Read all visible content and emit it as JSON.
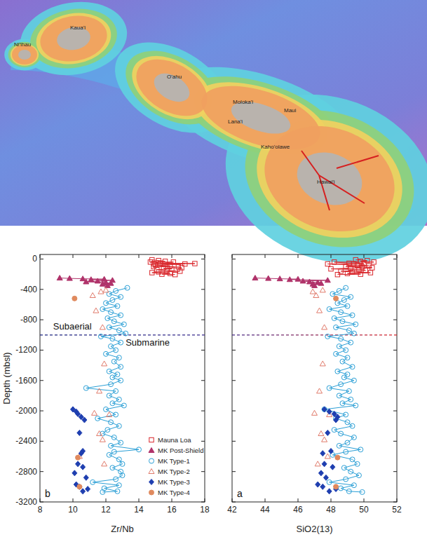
{
  "map": {
    "labels": [
      "Kaua'i",
      "Ni'ihau",
      "O'ahu",
      "Moloka'i",
      "Lana'i",
      "Maui",
      "Kaho'olawe",
      "Hawai'i"
    ]
  },
  "chart_data": [
    {
      "type": "scatter",
      "panel_label": "b",
      "x_label": "Zr/Nb",
      "y_label": "Depth (mbsl)",
      "xlim": [
        8,
        18
      ],
      "xticks": [
        8,
        10,
        12,
        14,
        16,
        18
      ],
      "ylim": [
        -3200,
        60
      ],
      "yticks": [
        0,
        -400,
        -800,
        -1200,
        -1600,
        -2000,
        -2400,
        -2800,
        -3200
      ],
      "tick_labels": true,
      "legend": "lower right",
      "reference_line": -1000,
      "annotations": [
        {
          "text": "Subaerial",
          "x": 8.8,
          "y": -930
        },
        {
          "text": "Submarine",
          "x": 13.2,
          "y": -1140
        }
      ],
      "series": [
        {
          "name": "Mauna Loa",
          "color": "#d9262b",
          "marker": "open-square",
          "line_style": "solid",
          "x": [
            14.8,
            15.2,
            15.6,
            14.7,
            16.1,
            15.3,
            17.4,
            14.9,
            16.8,
            15.0,
            15.9,
            14.9,
            16.4,
            16.6,
            15.5,
            16.0,
            15.1,
            15.7,
            16.5,
            15.2,
            14.8,
            15.9,
            15.4,
            16.2
          ],
          "values": [
            -10,
            -20,
            -30,
            -40,
            -40,
            -55,
            -60,
            -60,
            -65,
            -80,
            -90,
            -100,
            -105,
            -115,
            -120,
            -130,
            -140,
            -150,
            -160,
            -170,
            -180,
            -190,
            -200,
            -205
          ]
        },
        {
          "name": "MK Post-Shield",
          "color": "#b0336a",
          "marker": "triangle",
          "line_style": "solid",
          "x": [
            9.2,
            9.8,
            10.6,
            11.9,
            11.1,
            12.4,
            11.5,
            10.8,
            12.0,
            12.3,
            11.8,
            12.1
          ],
          "values": [
            -250,
            -255,
            -260,
            -265,
            -270,
            -280,
            -290,
            -300,
            -310,
            -320,
            -330,
            -350
          ]
        },
        {
          "name": "MK Type-1",
          "color": "#2a9fd6",
          "marker": "open-circle",
          "line_style": "solid",
          "x": [
            13.3,
            12.6,
            12.2,
            12.9,
            12.4,
            12.0,
            12.7,
            11.8,
            12.3,
            12.9,
            12.1,
            12.5,
            13.1,
            12.2,
            12.8,
            13.2,
            11.7,
            12.4,
            12.9,
            12.3,
            12.6,
            12.0,
            12.8,
            12.5,
            12.9,
            12.2,
            12.7,
            12.4,
            12.9,
            12.3,
            10.8,
            12.6,
            12.2,
            12.8,
            12.4,
            13.1,
            12.0,
            12.6,
            11.5,
            12.3,
            12.8,
            12.1,
            11.8,
            12.5,
            12.9,
            12.3,
            14.0,
            12.5,
            12.2,
            12.8,
            13.0,
            12.4,
            12.9,
            13.0,
            12.6,
            11.2,
            12.8,
            11.9,
            12.7,
            11.8
          ],
          "values": [
            -380,
            -420,
            -460,
            -500,
            -540,
            -580,
            -620,
            -660,
            -700,
            -740,
            -780,
            -820,
            -860,
            -900,
            -940,
            -980,
            -1020,
            -1050,
            -1100,
            -1150,
            -1200,
            -1250,
            -1300,
            -1350,
            -1420,
            -1480,
            -1520,
            -1560,
            -1600,
            -1650,
            -1700,
            -1740,
            -1800,
            -1850,
            -1900,
            -1930,
            -1980,
            -2050,
            -2100,
            -2150,
            -2200,
            -2250,
            -2300,
            -2350,
            -2420,
            -2460,
            -2510,
            -2540,
            -2580,
            -2640,
            -2700,
            -2750,
            -2800,
            -2850,
            -2900,
            -2940,
            -2980,
            -3020,
            -3060,
            -3070
          ]
        },
        {
          "name": "MK Type-2",
          "color": "#e07a6a",
          "marker": "open-triangle",
          "x": [
            12.0,
            11.7,
            11.2,
            11.4,
            11.8,
            11.9,
            11.6,
            11.3,
            12.2,
            11.6,
            11.8,
            10.4,
            11.9
          ],
          "values": [
            -410,
            -430,
            -480,
            -680,
            -900,
            -1380,
            -1740,
            -2030,
            -2050,
            -2300,
            -2380,
            -2600,
            -2700
          ]
        },
        {
          "name": "MK Type-3",
          "color": "#1f3fb0",
          "marker": "diamond",
          "x": [
            10.0,
            10.2,
            10.3,
            10.5,
            10.7,
            10.4,
            10.6,
            10.5,
            10.3,
            10.6,
            10.1,
            10.8,
            10.2,
            10.4,
            10.9,
            10.6
          ],
          "values": [
            -1980,
            -2010,
            -2040,
            -2080,
            -2120,
            -2290,
            -2530,
            -2560,
            -2700,
            -2740,
            -2820,
            -2880,
            -2970,
            -3000,
            -3030,
            -3060
          ]
        },
        {
          "name": "MK Type-4",
          "color": "#e08a5e",
          "marker": "circle",
          "x": [
            10.1,
            10.3,
            10.4
          ],
          "values": [
            -520,
            -2615,
            -3000
          ]
        }
      ]
    },
    {
      "type": "scatter",
      "panel_label": "a",
      "x_label": "SiO2(13)",
      "xlim": [
        42,
        52
      ],
      "xticks": [
        42,
        44,
        46,
        48,
        50,
        52
      ],
      "ylim": [
        -3200,
        60
      ],
      "yticks": [
        0,
        -400,
        -800,
        -1200,
        -1600,
        -2000,
        -2400,
        -2800,
        -3200
      ],
      "tick_labels": "x",
      "reference_line": -1000,
      "series": [
        {
          "color": "#d9262b",
          "marker": "open-square",
          "line_style": "solid",
          "x": [
            49.5,
            50.2,
            49.8,
            50.6,
            48.2,
            49.1,
            50.0,
            49.4,
            47.8,
            49.6,
            50.3,
            48.9,
            49.9,
            50.5,
            49.2,
            48.0,
            49.7,
            50.1,
            48.6,
            49.3,
            50.4,
            49.0,
            49.8,
            48.4
          ],
          "values": [
            -10,
            -20,
            -30,
            -40,
            -40,
            -55,
            -60,
            -60,
            -65,
            -80,
            -90,
            -100,
            -105,
            -115,
            -120,
            -130,
            -140,
            -150,
            -160,
            -170,
            -180,
            -190,
            -200,
            -205
          ]
        },
        {
          "color": "#b0336a",
          "marker": "triangle",
          "line_style": "solid",
          "x": [
            43.4,
            44.2,
            44.9,
            46.0,
            45.5,
            47.8,
            46.3,
            46.7,
            47.2,
            47.4,
            46.9,
            47.0
          ],
          "values": [
            -250,
            -255,
            -260,
            -265,
            -270,
            -280,
            -290,
            -300,
            -310,
            -320,
            -330,
            -350
          ]
        },
        {
          "color": "#2a9fd6",
          "marker": "open-circle",
          "line_style": "solid",
          "x": [
            48.9,
            48.5,
            48.1,
            49.2,
            48.8,
            48.4,
            49.0,
            47.9,
            48.6,
            49.3,
            48.2,
            48.7,
            49.5,
            48.3,
            49.1,
            49.4,
            47.8,
            48.6,
            49.2,
            48.5,
            48.9,
            48.3,
            49.0,
            48.7,
            49.3,
            48.4,
            49.0,
            48.8,
            49.4,
            48.6,
            47.9,
            49.1,
            48.5,
            49.2,
            48.7,
            49.5,
            47.6,
            48.9,
            48.3,
            49.0,
            49.3,
            48.2,
            48.6,
            49.4,
            49.0,
            48.5,
            49.8,
            48.9,
            48.1,
            49.3,
            49.6,
            48.8,
            49.2,
            49.7,
            48.9,
            47.9,
            49.4,
            48.6,
            49.1,
            49.9
          ],
          "values": [
            -380,
            -420,
            -460,
            -500,
            -540,
            -580,
            -620,
            -660,
            -700,
            -740,
            -780,
            -820,
            -860,
            -900,
            -940,
            -980,
            -1020,
            -1050,
            -1100,
            -1150,
            -1200,
            -1250,
            -1300,
            -1350,
            -1420,
            -1480,
            -1520,
            -1560,
            -1600,
            -1650,
            -1700,
            -1740,
            -1800,
            -1850,
            -1900,
            -1930,
            -1980,
            -2050,
            -2100,
            -2150,
            -2200,
            -2250,
            -2300,
            -2350,
            -2420,
            -2460,
            -2510,
            -2540,
            -2580,
            -2640,
            -2700,
            -2750,
            -2800,
            -2850,
            -2900,
            -2940,
            -2980,
            -3020,
            -3060,
            -3070
          ]
        },
        {
          "color": "#e07a6a",
          "marker": "open-triangle",
          "x": [
            47.5,
            46.9,
            47.1,
            47.3,
            47.6,
            47.5,
            47.3,
            47.0,
            47.9,
            47.4,
            47.6,
            47.8,
            47.2
          ],
          "values": [
            -410,
            -430,
            -480,
            -680,
            -900,
            -1380,
            -1740,
            -2030,
            -2050,
            -2300,
            -2380,
            -2600,
            -2700
          ]
        },
        {
          "color": "#1f3fb0",
          "marker": "diamond",
          "x": [
            47.6,
            47.9,
            48.2,
            48.4,
            48.3,
            47.8,
            48.0,
            47.5,
            47.6,
            48.1,
            47.4,
            47.7,
            47.2,
            47.5,
            48.3,
            47.9
          ],
          "values": [
            -1980,
            -2010,
            -2040,
            -2080,
            -2120,
            -2290,
            -2530,
            -2560,
            -2700,
            -2740,
            -2820,
            -2880,
            -2970,
            -3000,
            -3030,
            -3060
          ]
        },
        {
          "color": "#e08a5e",
          "marker": "circle",
          "x": [
            48.3,
            48.4,
            48.3
          ],
          "values": [
            -520,
            -2615,
            -3000
          ]
        }
      ]
    }
  ]
}
